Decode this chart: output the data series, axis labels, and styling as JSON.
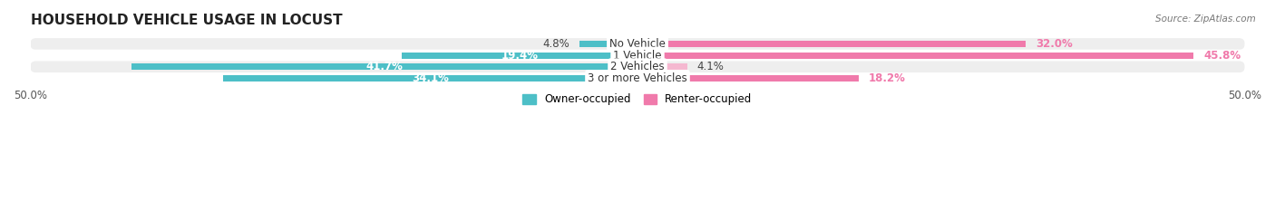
{
  "title": "HOUSEHOLD VEHICLE USAGE IN LOCUST",
  "source": "Source: ZipAtlas.com",
  "categories": [
    "No Vehicle",
    "1 Vehicle",
    "2 Vehicles",
    "3 or more Vehicles"
  ],
  "owner_values": [
    4.8,
    19.4,
    41.7,
    34.1
  ],
  "renter_values": [
    32.0,
    45.8,
    4.1,
    18.2
  ],
  "owner_color": "#4dbfc7",
  "renter_color": "#f07aab",
  "renter_color_light": "#f5b8d0",
  "bg_strip_color": "#eeeeee",
  "axis_max": 50.0,
  "label_fontsize": 8.5,
  "title_fontsize": 11,
  "bar_height": 0.55,
  "legend_labels": [
    "Owner-occupied",
    "Renter-occupied"
  ],
  "owner_label_threshold": 15.0,
  "renter_label_threshold": 15.0
}
